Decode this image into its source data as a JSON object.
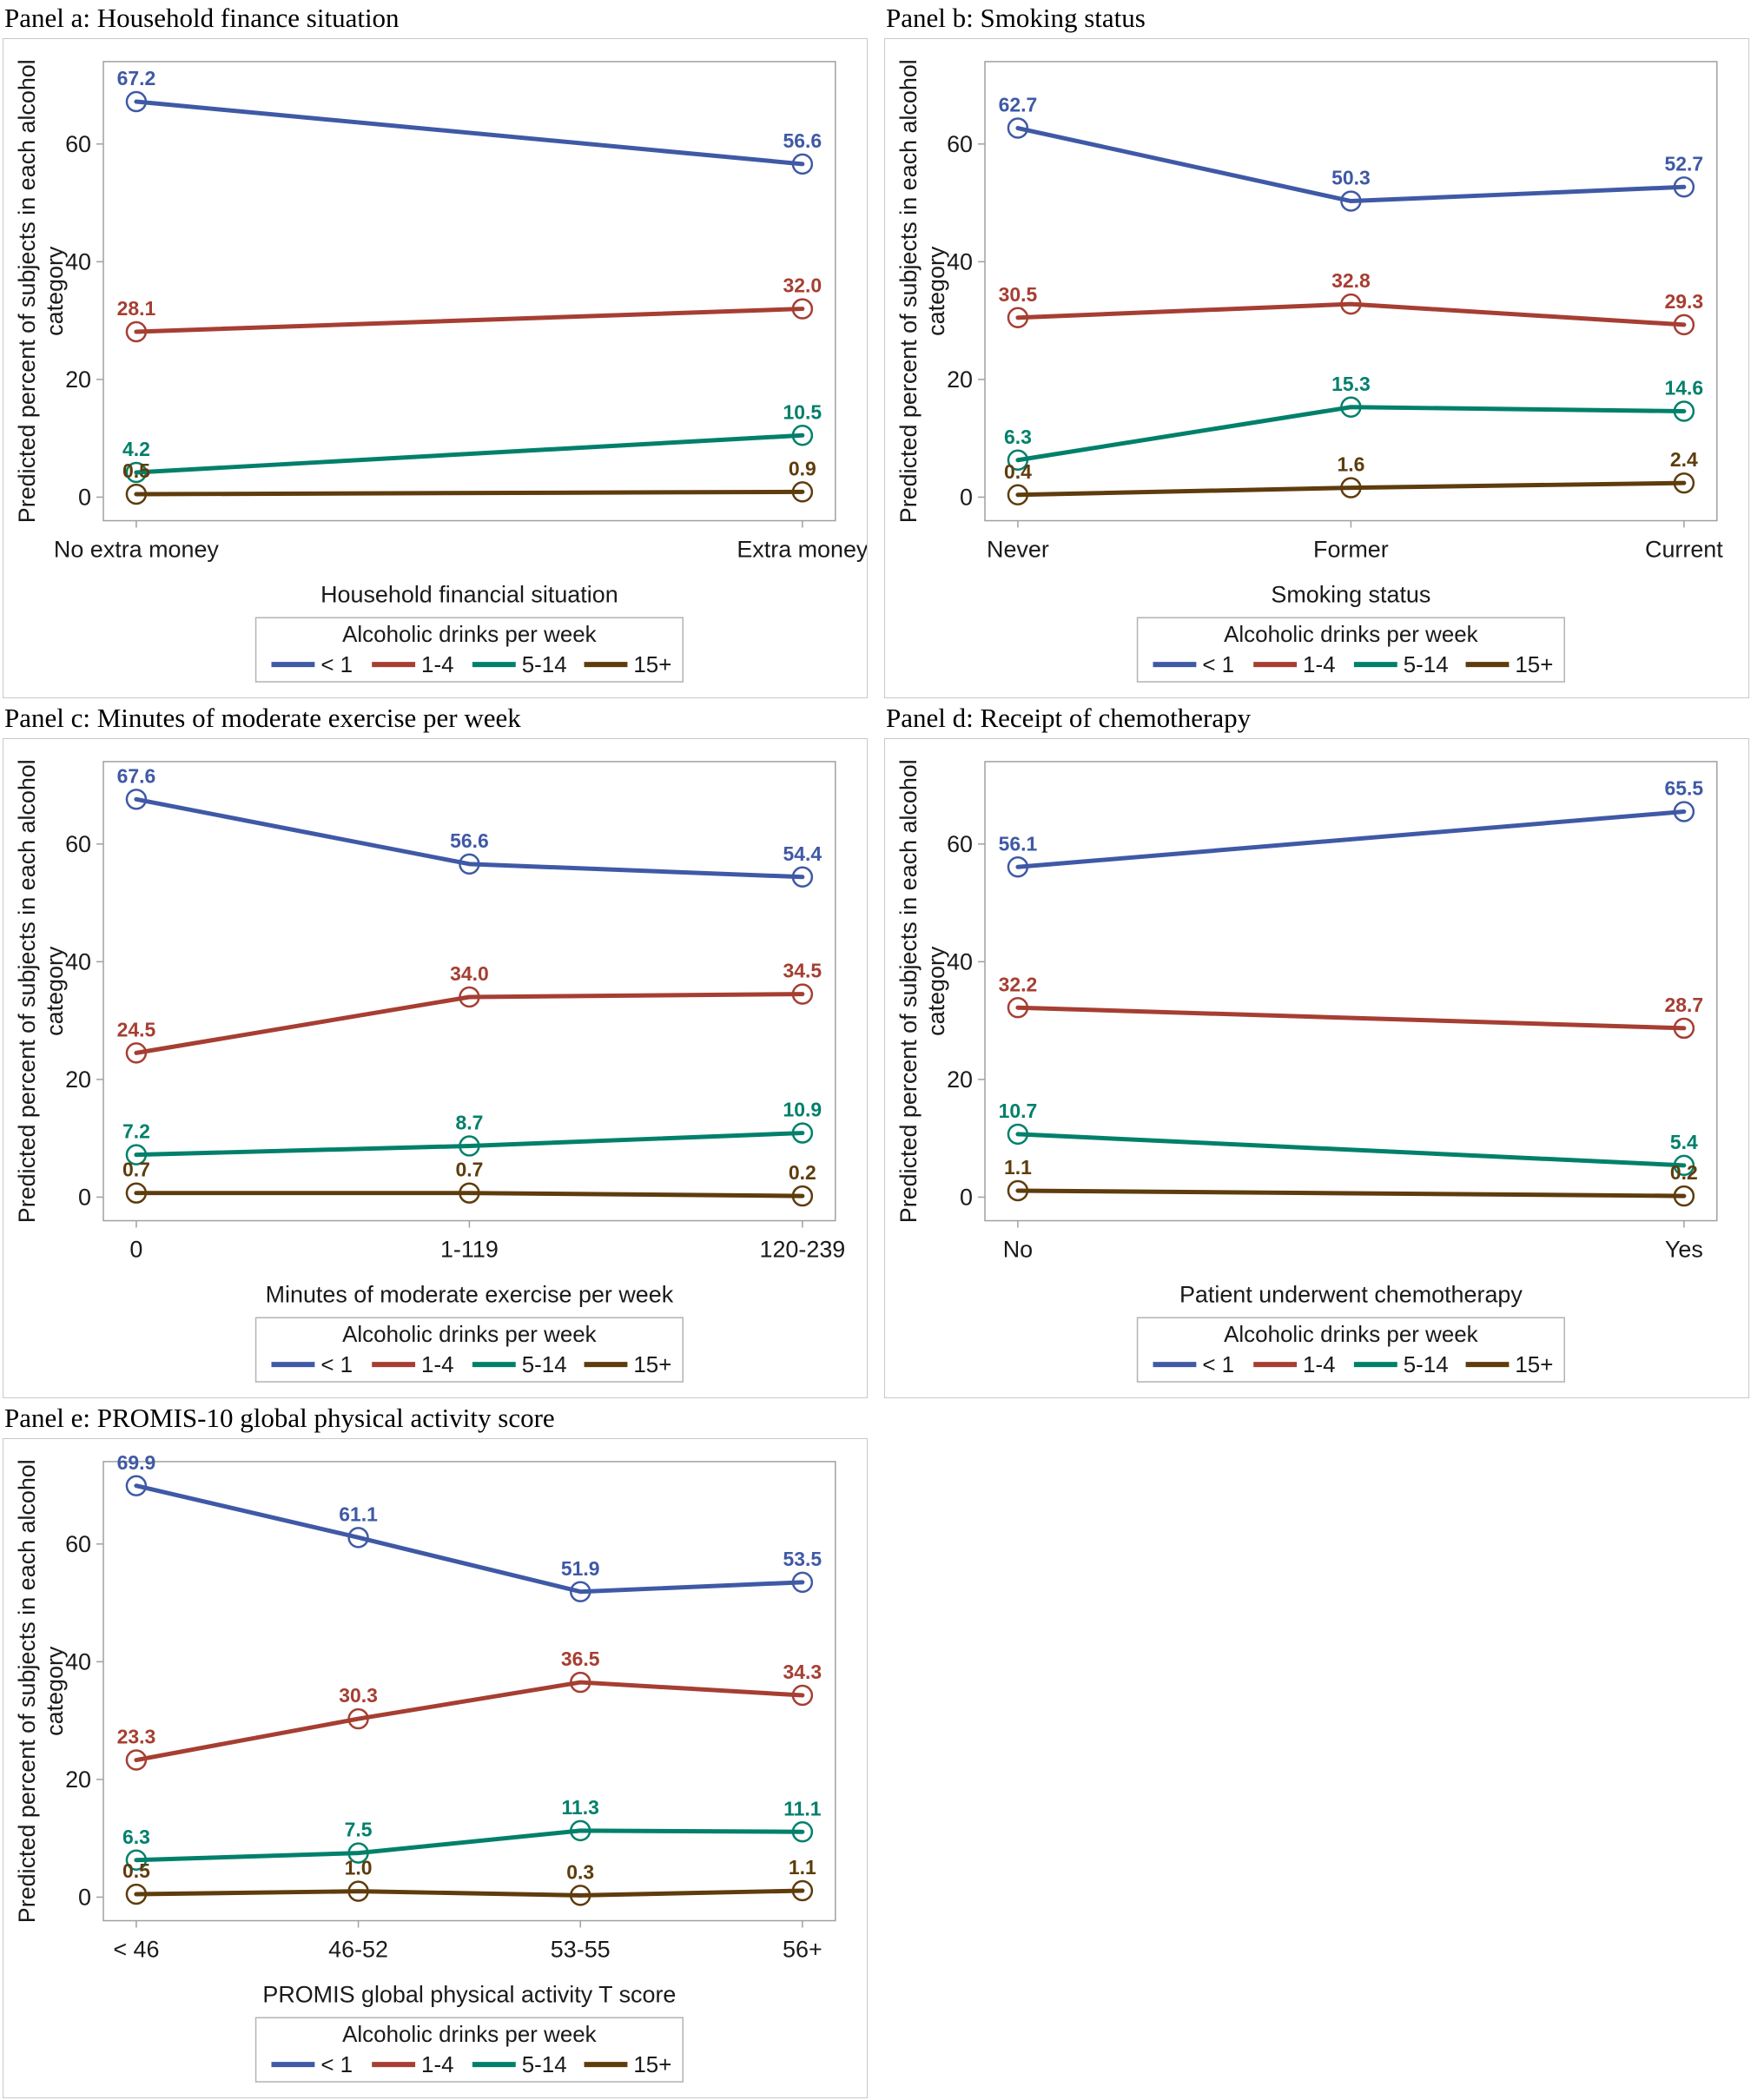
{
  "page": {
    "background": "#ffffff"
  },
  "legend": {
    "title": "Alcoholic drinks per week",
    "position": "bottom",
    "entries": [
      {
        "label": "< 1",
        "color": "#3F59A6"
      },
      {
        "label": "1-4",
        "color": "#A63E32"
      },
      {
        "label": "5-14",
        "color": "#00806B"
      },
      {
        "label": "15+",
        "color": "#5E3C0C"
      }
    ]
  },
  "axis": {
    "ylabel": "Predicted percent of subjects in each alcohol category",
    "ylabel_lines": [
      "Predicted percent of subjects in each alcohol",
      "category"
    ],
    "yticks": [
      0,
      20,
      40,
      60
    ],
    "ylim": [
      -4,
      74
    ],
    "grid": false
  },
  "chart_data": [
    {
      "id": "a",
      "type": "line",
      "panel_title": "Panel a: Household finance situation",
      "xlabel": "Household financial situation",
      "ylabel": "Predicted percent of subjects in each alcohol category",
      "categories": [
        "No extra money",
        "Extra money"
      ],
      "series": [
        {
          "name": "< 1",
          "values": [
            67.2,
            56.6
          ]
        },
        {
          "name": "1-4",
          "values": [
            28.1,
            32.0
          ]
        },
        {
          "name": "5-14",
          "values": [
            4.2,
            10.5
          ]
        },
        {
          "name": "15+",
          "values": [
            0.5,
            0.9
          ]
        }
      ]
    },
    {
      "id": "b",
      "type": "line",
      "panel_title": "Panel b:  Smoking status",
      "xlabel": "Smoking status",
      "ylabel": "Predicted percent of subjects in each alcohol category",
      "categories": [
        "Never",
        "Former",
        "Current"
      ],
      "series": [
        {
          "name": "< 1",
          "values": [
            62.7,
            50.3,
            52.7
          ]
        },
        {
          "name": "1-4",
          "values": [
            30.5,
            32.8,
            29.3
          ]
        },
        {
          "name": "5-14",
          "values": [
            6.3,
            15.3,
            14.6
          ]
        },
        {
          "name": "15+",
          "values": [
            0.4,
            1.6,
            2.4
          ]
        }
      ]
    },
    {
      "id": "c",
      "type": "line",
      "panel_title": "Panel c: Minutes of moderate exercise per week",
      "xlabel": "Minutes of moderate exercise per week",
      "ylabel": "Predicted percent of subjects in each alcohol category",
      "categories": [
        "0",
        "1-119",
        "120-239"
      ],
      "series": [
        {
          "name": "< 1",
          "values": [
            67.6,
            56.6,
            54.4
          ]
        },
        {
          "name": "1-4",
          "values": [
            24.5,
            34.0,
            34.5
          ]
        },
        {
          "name": "5-14",
          "values": [
            7.2,
            8.7,
            10.9
          ]
        },
        {
          "name": "15+",
          "values": [
            0.7,
            0.7,
            0.2
          ]
        }
      ]
    },
    {
      "id": "d",
      "type": "line",
      "panel_title": "Panel d: Receipt of chemotherapy",
      "xlabel": "Patient underwent chemotherapy",
      "ylabel": "Predicted percent of subjects in each alcohol category",
      "categories": [
        "No",
        "Yes"
      ],
      "series": [
        {
          "name": "< 1",
          "values": [
            56.1,
            65.5
          ]
        },
        {
          "name": "1-4",
          "values": [
            32.2,
            28.7
          ]
        },
        {
          "name": "5-14",
          "values": [
            10.7,
            5.4
          ]
        },
        {
          "name": "15+",
          "values": [
            1.1,
            0.2
          ]
        }
      ]
    },
    {
      "id": "e",
      "type": "line",
      "panel_title": "Panel e: PROMIS-10 global physical activity score",
      "xlabel": "PROMIS global physical activity T score",
      "ylabel": "Predicted percent of subjects in each alcohol category",
      "categories": [
        "< 46",
        "46-52",
        "53-55",
        "56+"
      ],
      "series": [
        {
          "name": "< 1",
          "values": [
            69.9,
            61.1,
            51.9,
            53.5
          ]
        },
        {
          "name": "1-4",
          "values": [
            23.3,
            30.3,
            36.5,
            34.3
          ]
        },
        {
          "name": "5-14",
          "values": [
            6.3,
            7.5,
            11.3,
            11.1
          ]
        },
        {
          "name": "15+",
          "values": [
            0.5,
            1.0,
            0.3,
            1.1
          ]
        }
      ]
    }
  ]
}
